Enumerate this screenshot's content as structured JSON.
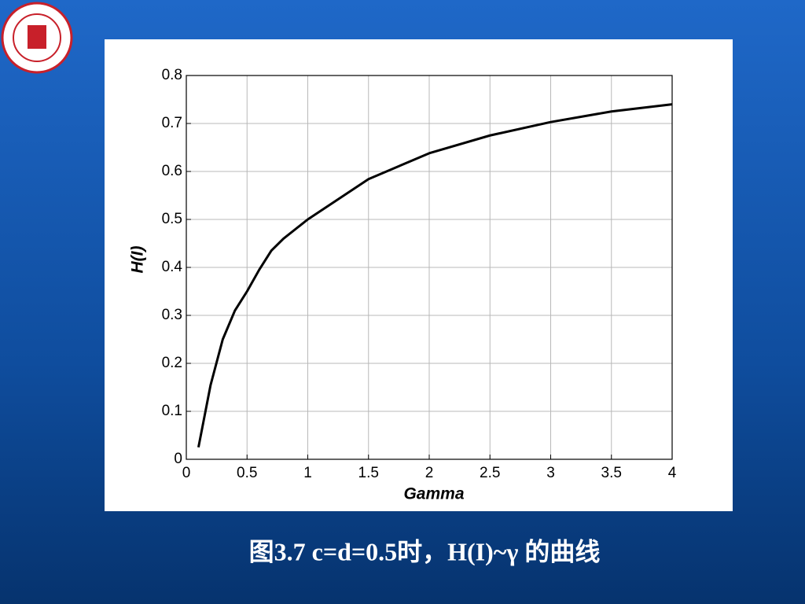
{
  "chart_data": {
    "type": "line",
    "x_label": "Gamma",
    "y_label": "H(I)",
    "caption": "图3.7 c=d=0.5时，H(I)~γ 的曲线",
    "x": [
      0.1,
      0.2,
      0.3,
      0.4,
      0.5,
      0.6,
      0.7,
      0.8,
      1,
      1.5,
      2,
      2.5,
      3,
      3.5,
      4
    ],
    "series": [
      {
        "color": "#000000",
        "values": [
          0.025,
          0.155,
          0.25,
          0.31,
          0.35,
          0.395,
          0.435,
          0.46,
          0.5,
          0.584,
          0.638,
          0.675,
          0.703,
          0.725,
          0.74
        ]
      }
    ],
    "xlim": [
      0,
      4
    ],
    "xticks": [
      0,
      0.5,
      1,
      1.5,
      2,
      2.5,
      3,
      3.5,
      4
    ],
    "ylim": [
      0,
      0.8
    ],
    "yticks": [
      0,
      0.1,
      0.2,
      0.3,
      0.4,
      0.5,
      0.6,
      0.7,
      0.8
    ],
    "grid": true
  }
}
